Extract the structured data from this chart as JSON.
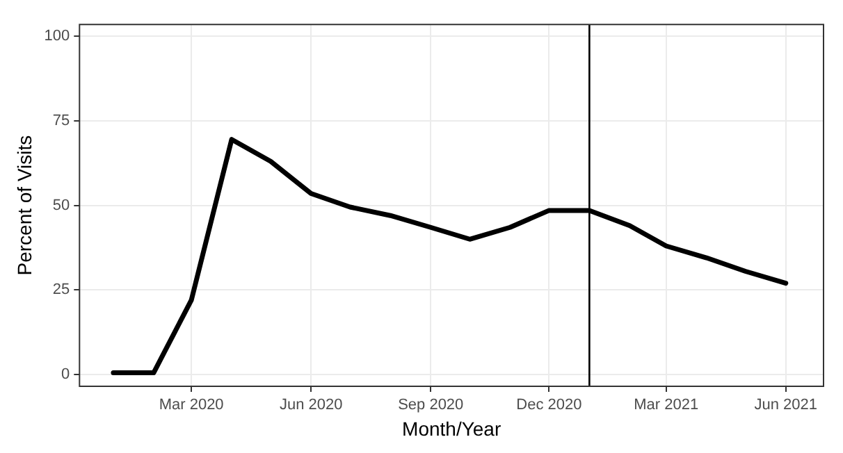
{
  "chart_data": {
    "type": "line",
    "xlabel": "Month/Year",
    "ylabel": "Percent of Visits",
    "x": [
      "2020-01-01",
      "2020-02-01",
      "2020-03-01",
      "2020-04-01",
      "2020-05-01",
      "2020-06-01",
      "2020-07-01",
      "2020-08-01",
      "2020-09-01",
      "2020-10-01",
      "2020-11-01",
      "2020-12-01",
      "2021-01-01",
      "2021-02-01",
      "2021-03-01",
      "2021-04-01",
      "2021-05-01",
      "2021-06-01"
    ],
    "series": [
      {
        "color": "#000000",
        "values": [
          0.5,
          0.5,
          22,
          69.5,
          63,
          53.5,
          49.5,
          47,
          43.5,
          40,
          43.5,
          48.5,
          48.5,
          44,
          38,
          34.5,
          30.5,
          27
        ]
      }
    ],
    "xlim": [
      "2019-12-06",
      "2021-06-30"
    ],
    "xticks": [
      {
        "value": "2020-03-01",
        "label": "Mar 2020"
      },
      {
        "value": "2020-06-01",
        "label": "Jun 2020"
      },
      {
        "value": "2020-09-01",
        "label": "Sep 2020"
      },
      {
        "value": "2020-12-01",
        "label": "Dec 2020"
      },
      {
        "value": "2021-03-01",
        "label": "Mar 2021"
      },
      {
        "value": "2021-06-01",
        "label": "Jun 2021"
      }
    ],
    "ylim": [
      -3.5,
      103.5
    ],
    "yticks": [
      0,
      25,
      50,
      75,
      100
    ],
    "ref_lines": [
      {
        "axis": "x",
        "value": "2021-01-01",
        "color": "#000000"
      }
    ],
    "grid": true,
    "legend": false,
    "marker": "none",
    "line_style": "solid"
  }
}
